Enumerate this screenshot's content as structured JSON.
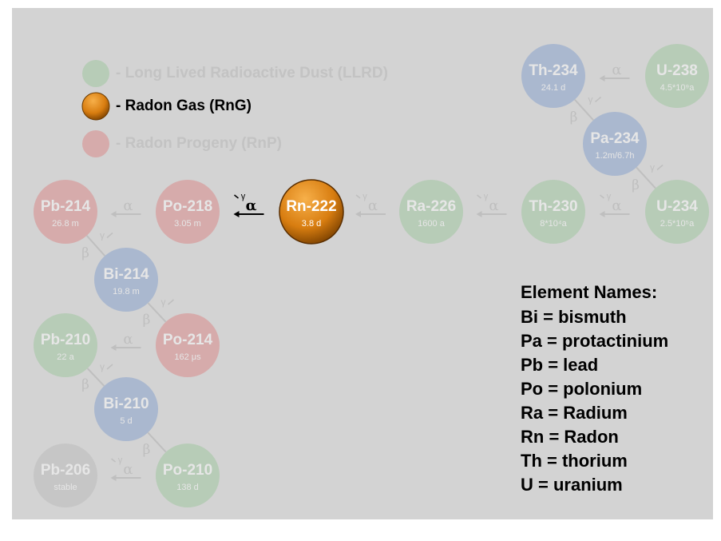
{
  "legend": [
    {
      "label": "- Long Lived Radioactive Dust (LLRD)",
      "color": "#b7ccb7",
      "active": false
    },
    {
      "label": "- Radon Gas (RnG)",
      "color": "#e8901c",
      "active": true
    },
    {
      "label": "- Radon Progeny (RnP)",
      "color": "#d6abab",
      "active": false
    }
  ],
  "symbols": {
    "alpha": "α",
    "beta": "β",
    "gamma": "γ"
  },
  "nodes": [
    {
      "symbol": "U-238",
      "half_life": "4.5*10⁹a",
      "color": "#b7ccb7"
    },
    {
      "symbol": "Th-234",
      "half_life": "24.1 d",
      "color": "#aab8cf"
    },
    {
      "symbol": "Pa-234",
      "half_life": "1.2m/6.7h",
      "color": "#aab8cf"
    },
    {
      "symbol": "U-234",
      "half_life": "2.5*10⁵a",
      "color": "#b7ccb7"
    },
    {
      "symbol": "Th-230",
      "half_life": "8*10⁴a",
      "color": "#b7ccb7"
    },
    {
      "symbol": "Ra-226",
      "half_life": "1600 a",
      "color": "#b7ccb7"
    },
    {
      "symbol": "Rn-222",
      "half_life": "3.8 d",
      "color": "#e8901c",
      "active": true
    },
    {
      "symbol": "Po-218",
      "half_life": "3.05 m",
      "color": "#d6abab"
    },
    {
      "symbol": "Pb-214",
      "half_life": "26.8 m",
      "color": "#d6abab"
    },
    {
      "symbol": "Bi-214",
      "half_life": "19.8 m",
      "color": "#aab8cf"
    },
    {
      "symbol": "Po-214",
      "half_life": "162 μs",
      "color": "#d6abab"
    },
    {
      "symbol": "Pb-210",
      "half_life": "22 a",
      "color": "#b7ccb7"
    },
    {
      "symbol": "Bi-210",
      "half_life": "5 d",
      "color": "#aab8cf"
    },
    {
      "symbol": "Po-210",
      "half_life": "138 d",
      "color": "#b7ccb7"
    },
    {
      "symbol": "Pb-206",
      "half_life": "stable",
      "color": "#c6c6c6"
    }
  ],
  "transitions": [
    {
      "from": 0,
      "to": 1,
      "kind": "alpha",
      "gamma": false
    },
    {
      "from": 1,
      "to": 2,
      "kind": "beta",
      "gamma": true
    },
    {
      "from": 2,
      "to": 3,
      "kind": "beta",
      "gamma": true
    },
    {
      "from": 3,
      "to": 4,
      "kind": "alpha",
      "gamma": true
    },
    {
      "from": 4,
      "to": 5,
      "kind": "alpha",
      "gamma": true
    },
    {
      "from": 5,
      "to": 6,
      "kind": "alpha",
      "gamma": true
    },
    {
      "from": 6,
      "to": 7,
      "kind": "alpha",
      "gamma": true,
      "active": true
    },
    {
      "from": 7,
      "to": 8,
      "kind": "alpha",
      "gamma": false
    },
    {
      "from": 8,
      "to": 9,
      "kind": "beta",
      "gamma": true
    },
    {
      "from": 9,
      "to": 10,
      "kind": "beta",
      "gamma": true
    },
    {
      "from": 10,
      "to": 11,
      "kind": "alpha",
      "gamma": false
    },
    {
      "from": 11,
      "to": 12,
      "kind": "beta",
      "gamma": true
    },
    {
      "from": 12,
      "to": 13,
      "kind": "beta",
      "gamma": false
    },
    {
      "from": 13,
      "to": 14,
      "kind": "alpha",
      "gamma": true
    }
  ],
  "element_names": {
    "title": "Element Names:",
    "items": [
      "Bi = bismuth",
      "Pa = protactinium",
      "Pb = lead",
      "Po = polonium",
      "Ra = Radium",
      "Rn = Radon",
      "Th = thorium",
      "U = uranium"
    ]
  }
}
